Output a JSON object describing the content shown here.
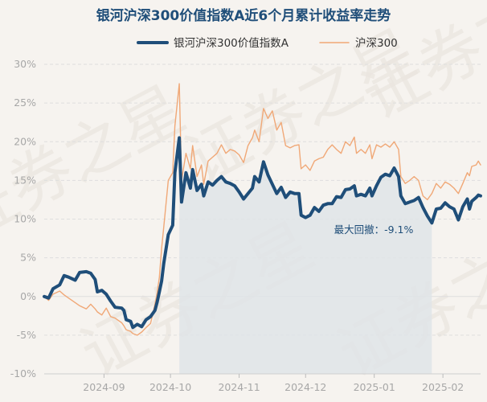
{
  "chart_data": {
    "type": "line",
    "title": "银河沪深300价值指数A近6个月累计收益率走势",
    "xlabel": "",
    "ylabel": "",
    "ylim": [
      -10,
      30
    ],
    "y_ticks": [
      30,
      25,
      20,
      15,
      10,
      5,
      0,
      -5,
      -10
    ],
    "y_tick_labels": [
      "30%",
      "25%",
      "20%",
      "15%",
      "10%",
      "5%",
      "0%",
      "-5%",
      "-10%"
    ],
    "x_start": "2024-08-05",
    "x_end": "2025-02-18",
    "x_ticks": [
      "2024-09-01",
      "2024-10-01",
      "2024-11-01",
      "2024-12-01",
      "2025-01-01",
      "2025-02-01"
    ],
    "x_tick_labels": [
      "2024-09",
      "2024-10",
      "2024-11",
      "2024-12",
      "2025-01",
      "2025-02"
    ],
    "grid": true,
    "legend": "top-center",
    "series": [
      {
        "name": "银河沪深300价值指数A",
        "color": "#1f4e79",
        "points": [
          [
            "2024-08-05",
            0.0
          ],
          [
            "2024-08-07",
            -0.2
          ],
          [
            "2024-08-09",
            1.0
          ],
          [
            "2024-08-12",
            1.5
          ],
          [
            "2024-08-14",
            2.7
          ],
          [
            "2024-08-16",
            2.5
          ],
          [
            "2024-08-19",
            2.1
          ],
          [
            "2024-08-21",
            3.1
          ],
          [
            "2024-08-24",
            3.2
          ],
          [
            "2024-08-26",
            3.0
          ],
          [
            "2024-08-28",
            2.2
          ],
          [
            "2024-08-29",
            0.6
          ],
          [
            "2024-08-31",
            0.8
          ],
          [
            "2024-09-02",
            0.3
          ],
          [
            "2024-09-04",
            -0.6
          ],
          [
            "2024-09-06",
            -1.4
          ],
          [
            "2024-09-09",
            -1.5
          ],
          [
            "2024-09-10",
            -1.8
          ],
          [
            "2024-09-11",
            -3.0
          ],
          [
            "2024-09-13",
            -3.2
          ],
          [
            "2024-09-14",
            -4.0
          ],
          [
            "2024-09-16",
            -3.6
          ],
          [
            "2024-09-18",
            -3.9
          ],
          [
            "2024-09-20",
            -3.0
          ],
          [
            "2024-09-22",
            -2.6
          ],
          [
            "2024-09-24",
            -1.8
          ],
          [
            "2024-09-25",
            -0.7
          ],
          [
            "2024-09-26",
            0.6
          ],
          [
            "2024-09-27",
            2.0
          ],
          [
            "2024-09-28",
            4.3
          ],
          [
            "2024-09-30",
            8.0
          ],
          [
            "2024-10-02",
            9.2
          ],
          [
            "2024-10-03",
            16.0
          ],
          [
            "2024-10-05",
            20.5
          ],
          [
            "2024-10-06",
            12.2
          ],
          [
            "2024-10-08",
            16.0
          ],
          [
            "2024-10-10",
            14.0
          ],
          [
            "2024-10-11",
            16.4
          ],
          [
            "2024-10-13",
            13.7
          ],
          [
            "2024-10-15",
            14.5
          ],
          [
            "2024-10-16",
            13.0
          ],
          [
            "2024-10-18",
            14.8
          ],
          [
            "2024-10-20",
            14.4
          ],
          [
            "2024-10-22",
            15.0
          ],
          [
            "2024-10-24",
            15.5
          ],
          [
            "2024-10-26",
            14.8
          ],
          [
            "2024-10-28",
            14.6
          ],
          [
            "2024-10-30",
            14.3
          ],
          [
            "2024-11-01",
            13.5
          ],
          [
            "2024-11-03",
            12.6
          ],
          [
            "2024-11-05",
            13.3
          ],
          [
            "2024-11-07",
            14.0
          ],
          [
            "2024-11-08",
            15.5
          ],
          [
            "2024-11-10",
            14.8
          ],
          [
            "2024-11-12",
            17.4
          ],
          [
            "2024-11-14",
            15.7
          ],
          [
            "2024-11-16",
            14.5
          ],
          [
            "2024-11-18",
            13.3
          ],
          [
            "2024-11-20",
            14.1
          ],
          [
            "2024-11-22",
            12.8
          ],
          [
            "2024-11-24",
            13.5
          ],
          [
            "2024-11-26",
            13.3
          ],
          [
            "2024-11-28",
            13.3
          ],
          [
            "2024-11-29",
            10.5
          ],
          [
            "2024-12-01",
            10.2
          ],
          [
            "2024-12-03",
            10.5
          ],
          [
            "2024-12-05",
            11.5
          ],
          [
            "2024-12-07",
            11.0
          ],
          [
            "2024-12-09",
            11.8
          ],
          [
            "2024-12-11",
            12.0
          ],
          [
            "2024-12-13",
            12.0
          ],
          [
            "2024-12-15",
            12.9
          ],
          [
            "2024-12-17",
            12.8
          ],
          [
            "2024-12-19",
            13.8
          ],
          [
            "2024-12-21",
            13.9
          ],
          [
            "2024-12-23",
            14.3
          ],
          [
            "2024-12-24",
            13.0
          ],
          [
            "2024-12-26",
            13.2
          ],
          [
            "2024-12-28",
            13.0
          ],
          [
            "2024-12-30",
            14.0
          ],
          [
            "2024-12-31",
            13.0
          ],
          [
            "2025-01-02",
            14.3
          ],
          [
            "2025-01-04",
            15.4
          ],
          [
            "2025-01-06",
            15.8
          ],
          [
            "2025-01-08",
            15.6
          ],
          [
            "2025-01-10",
            16.6
          ],
          [
            "2025-01-12",
            15.5
          ],
          [
            "2025-01-13",
            13.0
          ],
          [
            "2025-01-15",
            12.0
          ],
          [
            "2025-01-17",
            12.2
          ],
          [
            "2025-01-19",
            12.4
          ],
          [
            "2025-01-21",
            12.8
          ],
          [
            "2025-01-23",
            11.5
          ],
          [
            "2025-01-25",
            10.4
          ],
          [
            "2025-01-27",
            9.5
          ],
          [
            "2025-01-29",
            11.3
          ],
          [
            "2025-01-31",
            11.4
          ],
          [
            "2025-02-02",
            12.1
          ],
          [
            "2025-02-04",
            11.6
          ],
          [
            "2025-02-06",
            11.3
          ],
          [
            "2025-02-08",
            9.9
          ],
          [
            "2025-02-10",
            11.6
          ],
          [
            "2025-02-12",
            12.6
          ],
          [
            "2025-02-13",
            11.3
          ],
          [
            "2025-02-14",
            12.3
          ],
          [
            "2025-02-16",
            12.8
          ],
          [
            "2025-02-17",
            13.1
          ],
          [
            "2025-02-18",
            13.0
          ]
        ]
      },
      {
        "name": "沪深300",
        "color": "#f0a877",
        "points": [
          [
            "2024-08-05",
            0.0
          ],
          [
            "2024-08-07",
            -0.5
          ],
          [
            "2024-08-09",
            0.3
          ],
          [
            "2024-08-12",
            0.7
          ],
          [
            "2024-08-14",
            0.2
          ],
          [
            "2024-08-16",
            -0.2
          ],
          [
            "2024-08-19",
            -0.8
          ],
          [
            "2024-08-21",
            -1.2
          ],
          [
            "2024-08-24",
            -1.6
          ],
          [
            "2024-08-26",
            -1.0
          ],
          [
            "2024-08-28",
            -1.6
          ],
          [
            "2024-08-29",
            -2.0
          ],
          [
            "2024-08-31",
            -2.4
          ],
          [
            "2024-09-02",
            -1.5
          ],
          [
            "2024-09-04",
            -2.6
          ],
          [
            "2024-09-06",
            -2.8
          ],
          [
            "2024-09-09",
            -3.4
          ],
          [
            "2024-09-10",
            -3.8
          ],
          [
            "2024-09-11",
            -4.3
          ],
          [
            "2024-09-13",
            -4.5
          ],
          [
            "2024-09-14",
            -4.8
          ],
          [
            "2024-09-16",
            -5.0
          ],
          [
            "2024-09-18",
            -4.6
          ],
          [
            "2024-09-20",
            -4.0
          ],
          [
            "2024-09-22",
            -3.5
          ],
          [
            "2024-09-24",
            -1.0
          ],
          [
            "2024-09-25",
            0.5
          ],
          [
            "2024-09-26",
            2.5
          ],
          [
            "2024-09-27",
            6.2
          ],
          [
            "2024-09-28",
            9.0
          ],
          [
            "2024-09-30",
            15.0
          ],
          [
            "2024-10-02",
            16.0
          ],
          [
            "2024-10-03",
            22.0
          ],
          [
            "2024-10-05",
            27.5
          ],
          [
            "2024-10-06",
            15.0
          ],
          [
            "2024-10-08",
            18.5
          ],
          [
            "2024-10-10",
            16.5
          ],
          [
            "2024-10-11",
            19.5
          ],
          [
            "2024-10-13",
            15.5
          ],
          [
            "2024-10-15",
            17.0
          ],
          [
            "2024-10-16",
            14.5
          ],
          [
            "2024-10-18",
            17.5
          ],
          [
            "2024-10-20",
            18.0
          ],
          [
            "2024-10-22",
            18.5
          ],
          [
            "2024-10-24",
            19.6
          ],
          [
            "2024-10-26",
            18.5
          ],
          [
            "2024-10-28",
            19.0
          ],
          [
            "2024-10-30",
            18.8
          ],
          [
            "2024-11-01",
            18.3
          ],
          [
            "2024-11-03",
            17.3
          ],
          [
            "2024-11-05",
            19.5
          ],
          [
            "2024-11-07",
            20.5
          ],
          [
            "2024-11-08",
            21.5
          ],
          [
            "2024-11-10",
            20.0
          ],
          [
            "2024-11-12",
            24.3
          ],
          [
            "2024-11-14",
            23.0
          ],
          [
            "2024-11-16",
            24.0
          ],
          [
            "2024-11-18",
            21.5
          ],
          [
            "2024-11-20",
            22.5
          ],
          [
            "2024-11-22",
            19.5
          ],
          [
            "2024-11-24",
            19.2
          ],
          [
            "2024-11-26",
            19.5
          ],
          [
            "2024-11-28",
            19.6
          ],
          [
            "2024-11-29",
            16.5
          ],
          [
            "2024-12-01",
            17.0
          ],
          [
            "2024-12-03",
            16.3
          ],
          [
            "2024-12-05",
            17.5
          ],
          [
            "2024-12-07",
            17.8
          ],
          [
            "2024-12-09",
            18.0
          ],
          [
            "2024-12-11",
            19.0
          ],
          [
            "2024-12-13",
            19.6
          ],
          [
            "2024-12-15",
            19.0
          ],
          [
            "2024-12-17",
            18.5
          ],
          [
            "2024-12-19",
            20.0
          ],
          [
            "2024-12-21",
            19.5
          ],
          [
            "2024-12-23",
            20.6
          ],
          [
            "2024-12-24",
            18.5
          ],
          [
            "2024-12-26",
            19.0
          ],
          [
            "2024-12-28",
            18.5
          ],
          [
            "2024-12-30",
            19.6
          ],
          [
            "2024-12-31",
            17.8
          ],
          [
            "2025-01-02",
            19.6
          ],
          [
            "2025-01-04",
            19.3
          ],
          [
            "2025-01-06",
            19.7
          ],
          [
            "2025-01-08",
            19.3
          ],
          [
            "2025-01-10",
            20.0
          ],
          [
            "2025-01-12",
            19.0
          ],
          [
            "2025-01-13",
            15.5
          ],
          [
            "2025-01-15",
            14.6
          ],
          [
            "2025-01-17",
            15.0
          ],
          [
            "2025-01-19",
            15.5
          ],
          [
            "2025-01-21",
            15.0
          ],
          [
            "2025-01-23",
            13.0
          ],
          [
            "2025-01-25",
            12.5
          ],
          [
            "2025-01-27",
            13.3
          ],
          [
            "2025-01-29",
            14.6
          ],
          [
            "2025-01-31",
            14.0
          ],
          [
            "2025-02-02",
            14.8
          ],
          [
            "2025-02-04",
            14.5
          ],
          [
            "2025-02-06",
            14.0
          ],
          [
            "2025-02-08",
            13.3
          ],
          [
            "2025-02-10",
            14.6
          ],
          [
            "2025-02-12",
            16.0
          ],
          [
            "2025-02-13",
            15.6
          ],
          [
            "2025-02-14",
            16.8
          ],
          [
            "2025-02-16",
            17.0
          ],
          [
            "2025-02-17",
            17.5
          ],
          [
            "2025-02-18",
            17.0
          ]
        ]
      }
    ],
    "drawdown": {
      "start": "2024-10-05",
      "end": "2025-01-27",
      "fill_color": "#dfe4e8",
      "label": "最大回撤：-9.1%"
    }
  },
  "watermark": "证券之星"
}
